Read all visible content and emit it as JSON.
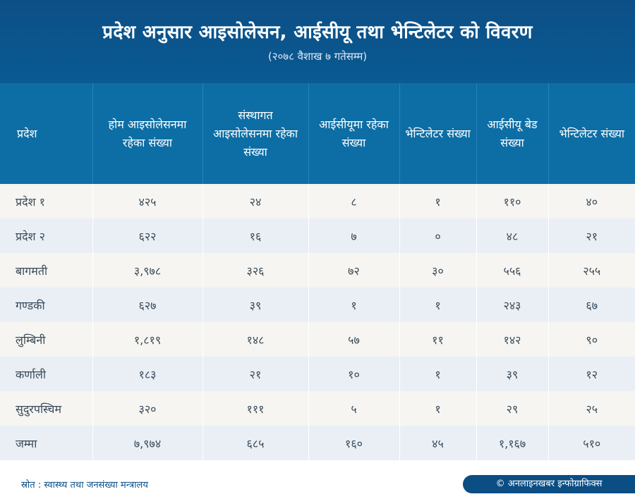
{
  "header": {
    "title": "प्रदेश अनुसार आइसोलेसन, आईसीयू तथा भेन्टिलेटर को विवरण",
    "subtitle": "(२०७८ वैशाख ७ गतेसम्म)"
  },
  "table": {
    "columns": [
      "प्रदेश",
      "होम आइसोलेसनमा रहेका संख्या",
      "संस्थागत आइसोलेसनमा रहेका संख्या",
      "आईसीयूमा रहेका संख्या",
      "भेन्टिलेटर संख्या",
      "आईसीयू बेड संख्या",
      "भेन्टिलेटर संख्या"
    ],
    "rows": [
      [
        "प्रदेश १",
        "४२५",
        "२४",
        "८",
        "१",
        "११०",
        "४०"
      ],
      [
        "प्रदेश २",
        "६२२",
        "१६",
        "७",
        "०",
        "४८",
        "२१"
      ],
      [
        "बागमती",
        "३,९७८",
        "३२६",
        "७२",
        "३०",
        "५५६",
        "२५५"
      ],
      [
        "गण्डकी",
        "६२७",
        "३९",
        "१",
        "१",
        "२४३",
        "६७"
      ],
      [
        "लुम्बिनी",
        "१,८१९",
        "१४८",
        "५७",
        "११",
        "१४२",
        "९०"
      ],
      [
        "कर्णाली",
        "१८३",
        "२१",
        "१०",
        "१",
        "३९",
        "१२"
      ],
      [
        "सुदुरपस्चिम",
        "३२०",
        "१११",
        "५",
        "१",
        "२९",
        "२५"
      ],
      [
        "जम्मा",
        "७,९७४",
        "६८५",
        "१६०",
        "४५",
        "१,१६७",
        "५१०"
      ]
    ]
  },
  "footer": {
    "source": "स्रोत : स्वास्थ्य तथा जनसंख्या मन्त्रालय",
    "credit": "© अनलाइनखबर इन्फोग्राफिक्स"
  },
  "colors": {
    "title_band": "#0c4f86",
    "header_band": "#0d6ea5",
    "row_odd": "#f6f5f1",
    "row_even": "#e9eff5"
  }
}
